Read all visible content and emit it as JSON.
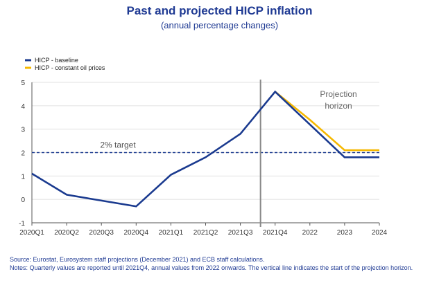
{
  "title": "Past and projected HICP inflation",
  "subtitle": "(annual percentage changes)",
  "colors": {
    "baseline": "#1a3a8f",
    "oil": "#f5b800",
    "target": "#1a3a8f",
    "vline": "#888888",
    "axis": "#555555",
    "grid": "#e0e0e0"
  },
  "chart_data": {
    "type": "line",
    "categories": [
      "2020Q1",
      "2020Q2",
      "2020Q3",
      "2020Q4",
      "2021Q1",
      "2021Q2",
      "2021Q3",
      "2021Q4",
      "2022",
      "2023",
      "2024"
    ],
    "ylim": [
      -1,
      5
    ],
    "yticks": [
      -1,
      0,
      1,
      2,
      3,
      4,
      5
    ],
    "series": [
      {
        "name": "HICP - baseline",
        "color": "#1a3a8f",
        "values": [
          1.1,
          0.2,
          -0.05,
          -0.3,
          1.05,
          1.8,
          2.8,
          4.6,
          3.2,
          1.8,
          1.8
        ]
      },
      {
        "name": "HICP - constant oil prices",
        "color": "#f5b800",
        "values": [
          null,
          null,
          null,
          null,
          null,
          null,
          null,
          4.6,
          3.4,
          2.1,
          2.1
        ]
      }
    ],
    "reference_line": {
      "value": 2,
      "label": "2% target"
    },
    "projection_marker": {
      "between": [
        "2021Q3",
        "2021Q4"
      ],
      "label_line1": "Projection",
      "label_line2": "horizon"
    },
    "legend": "top-left",
    "grid": "horizontal"
  },
  "footer": {
    "source": "Source: Eurostat, Eurosystem staff projections (December 2021) and ECB staff calculations.",
    "notes": "Notes: Quarterly values are reported until 2021Q4, annual values from 2022 onwards. The vertical line indicates the start of the projection horizon."
  }
}
